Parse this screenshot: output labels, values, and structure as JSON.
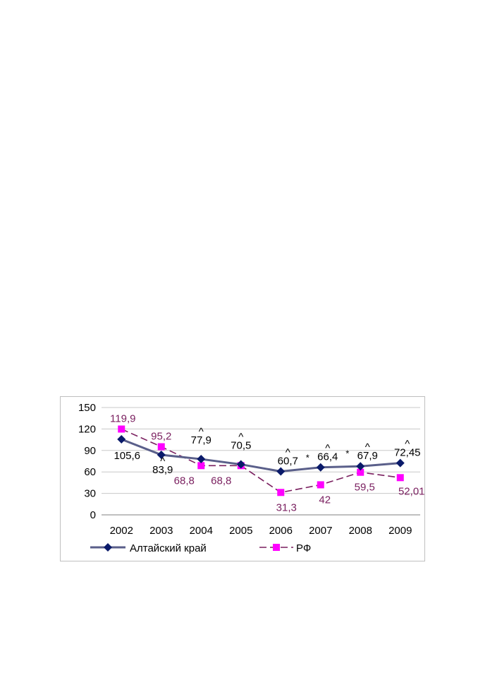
{
  "chart_data": {
    "type": "line",
    "title": "",
    "xlabel": "",
    "ylabel": "",
    "ylim": [
      0,
      150
    ],
    "yticks": [
      "0",
      "30",
      "60",
      "90",
      "120",
      "150"
    ],
    "categories": [
      "2002",
      "2003",
      "2004",
      "2005",
      "2006",
      "2007",
      "2008",
      "2009"
    ],
    "grid": true,
    "legend_position": "bottom",
    "series": [
      {
        "name": "Алтайский край",
        "color": "#5a5f8a",
        "marker_color": "#0a1a6a",
        "marker": "diamond",
        "line_style": "solid",
        "values": [
          105.6,
          83.9,
          77.9,
          70.5,
          60.7,
          66.4,
          67.9,
          72.45
        ],
        "labels": [
          "105,6",
          "83,9",
          "77,9",
          "70,5",
          "60,7",
          "66,4",
          "67,9",
          "72,45"
        ]
      },
      {
        "name": "РФ",
        "color": "#7a1f5f",
        "marker_color": "#ff00ff",
        "marker": "square",
        "line_style": "dashed",
        "values": [
          119.9,
          95.2,
          68.8,
          68.8,
          31.3,
          42,
          59.5,
          52.01
        ],
        "labels": [
          "119,9",
          "95,2",
          "68,8",
          "68,8",
          "31,3",
          "42",
          "59,5",
          "52,01"
        ]
      }
    ],
    "annotations": [
      {
        "text": "^",
        "category_index": 1
      },
      {
        "text": "^",
        "category_index": 2
      },
      {
        "text": "^",
        "category_index": 3
      },
      {
        "text": "^",
        "category_index": 4
      },
      {
        "text": "*",
        "category_index": 4
      },
      {
        "text": "^",
        "category_index": 5
      },
      {
        "text": "*",
        "category_index": 5
      },
      {
        "text": "^",
        "category_index": 6
      },
      {
        "text": "^",
        "category_index": 7
      },
      {
        "text": "*",
        "category_index": 7
      }
    ]
  }
}
